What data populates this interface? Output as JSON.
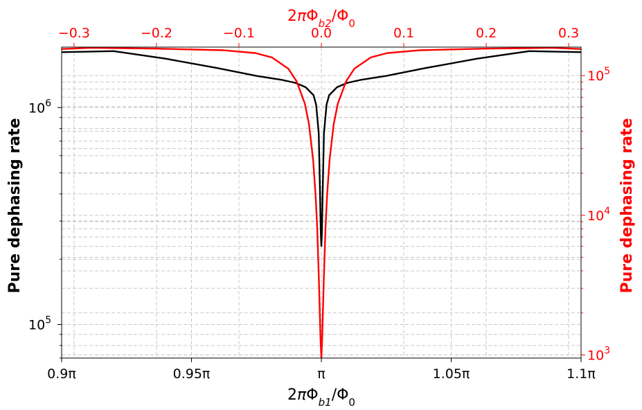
{
  "chart_data": {
    "type": "line",
    "grid": true,
    "bottom_axis": {
      "label": "2πΦ_b1/Φ_0",
      "range": [
        0.9,
        1.1
      ],
      "unit": "π",
      "ticks": [
        {
          "value": 0.9,
          "label": "0.9π"
        },
        {
          "value": 0.95,
          "label": "0.95π"
        },
        {
          "value": 1.0,
          "label": "π"
        },
        {
          "value": 1.05,
          "label": "1.05π"
        },
        {
          "value": 1.1,
          "label": "1.1π"
        }
      ]
    },
    "top_axis": {
      "label": "2πΦ_b2/Φ_0",
      "range": [
        -0.315,
        0.315
      ],
      "color": "#ff0000",
      "ticks": [
        {
          "value": -0.3,
          "label": "−0.3"
        },
        {
          "value": -0.2,
          "label": "−0.2"
        },
        {
          "value": -0.1,
          "label": "−0.1"
        },
        {
          "value": 0.0,
          "label": "0.0"
        },
        {
          "value": 0.1,
          "label": "0.1"
        },
        {
          "value": 0.2,
          "label": "0.2"
        },
        {
          "value": 0.3,
          "label": "0.3"
        }
      ]
    },
    "left_axis": {
      "label": "Pure dephasing rate",
      "scale": "log",
      "range": [
        70000,
        1900000
      ],
      "color": "#000000",
      "ticks": [
        {
          "value": 100000,
          "base": "10",
          "exp": "5"
        },
        {
          "value": 1000000,
          "base": "10",
          "exp": "6"
        }
      ]
    },
    "right_axis": {
      "label": "Pure dephasing rate",
      "scale": "log",
      "range": [
        950,
        160000
      ],
      "color": "#ff0000",
      "ticks": [
        {
          "value": 1000,
          "base": "10",
          "exp": "3"
        },
        {
          "value": 10000,
          "base": "10",
          "exp": "4"
        },
        {
          "value": 100000,
          "base": "10",
          "exp": "5"
        }
      ]
    },
    "series": [
      {
        "axis": "bottom-left",
        "color": "#000000",
        "x": [
          0.9,
          0.92,
          0.94,
          0.96,
          0.975,
          0.985,
          0.99,
          0.994,
          0.997,
          0.998,
          0.999,
          0.9995,
          0.9998,
          1.0,
          1.0002,
          1.0005,
          1.001,
          1.002,
          1.003,
          1.006,
          1.01,
          1.015,
          1.025,
          1.04,
          1.06,
          1.08,
          1.1
        ],
        "y": [
          1800000,
          1820000,
          1680000,
          1520000,
          1400000,
          1340000,
          1300000,
          1240000,
          1140000,
          1030000,
          760000,
          400000,
          260000,
          230000,
          260000,
          400000,
          760000,
          1030000,
          1140000,
          1240000,
          1300000,
          1340000,
          1400000,
          1520000,
          1680000,
          1820000,
          1800000
        ]
      },
      {
        "axis": "top-right",
        "color": "#ff0000",
        "x": [
          -0.315,
          -0.28,
          -0.2,
          -0.12,
          -0.08,
          -0.06,
          -0.04,
          -0.03,
          -0.02,
          -0.015,
          -0.01,
          -0.007,
          -0.005,
          -0.003,
          -0.001,
          0.0,
          0.001,
          0.003,
          0.005,
          0.007,
          0.01,
          0.015,
          0.02,
          0.03,
          0.04,
          0.06,
          0.08,
          0.12,
          0.2,
          0.28,
          0.315
        ],
        "y": [
          155000,
          158000,
          156000,
          152000,
          145000,
          135000,
          112000,
          91000,
          63000,
          45000,
          25000,
          14000,
          8000,
          3500,
          1300,
          950,
          1300,
          3500,
          8000,
          14000,
          25000,
          45000,
          63000,
          91000,
          112000,
          135000,
          145000,
          152000,
          156000,
          158000,
          155000
        ]
      }
    ]
  }
}
